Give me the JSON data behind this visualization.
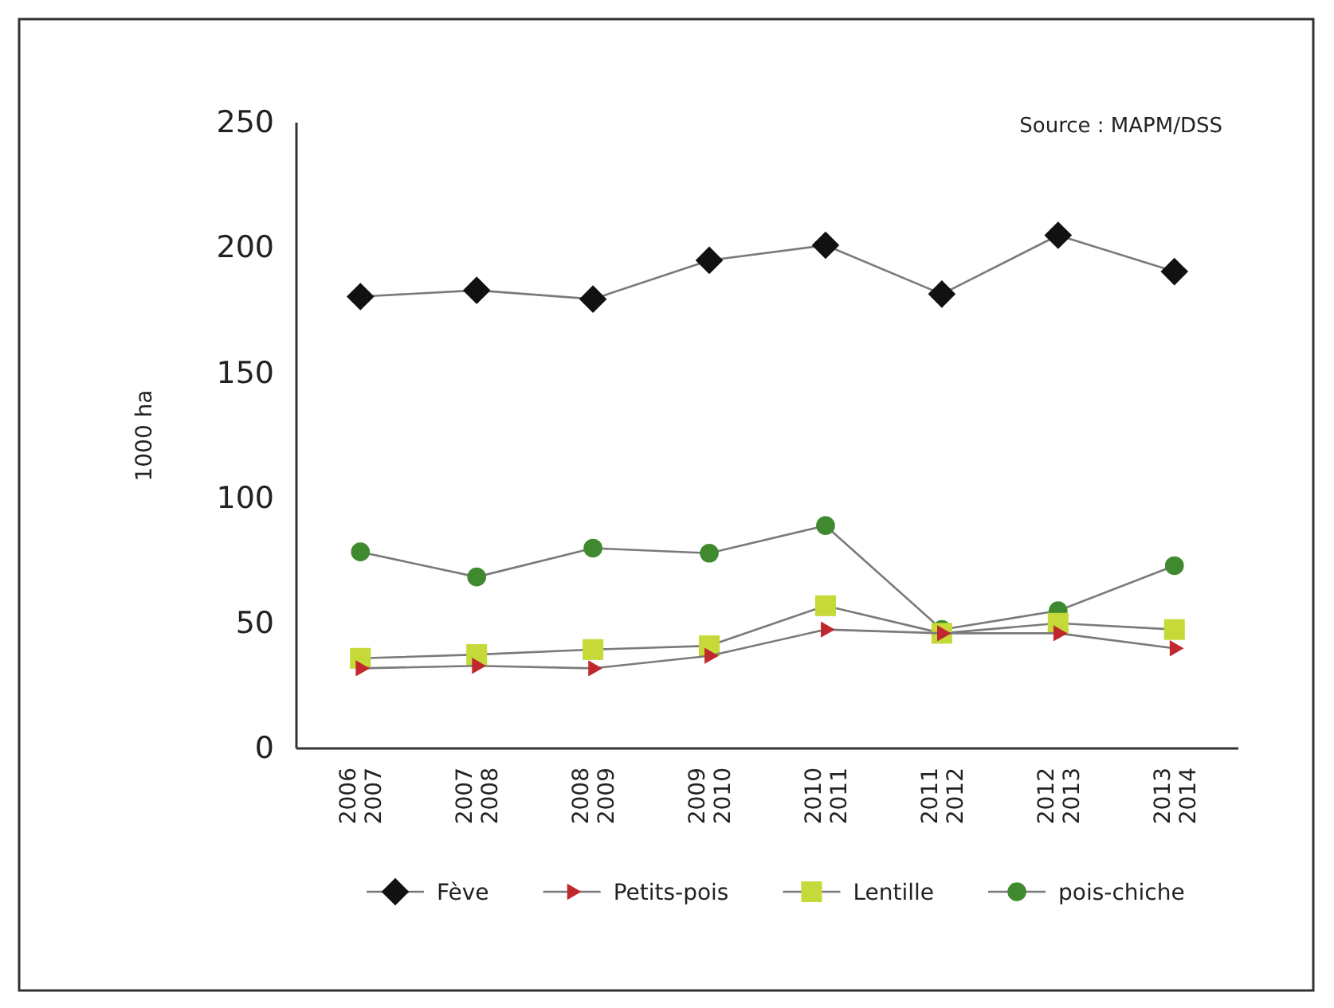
{
  "chart_data": {
    "type": "line",
    "ylabel": "1000 ha",
    "annotations": [
      "Source : MAPM/DSS"
    ],
    "categories": [
      "2006\n2007",
      "2007\n2008",
      "2008\n2009",
      "2009\n2010",
      "2010\n2011",
      "2011\n2012",
      "2012\n2013",
      "2013\n2014"
    ],
    "series": [
      {
        "name": "Fève",
        "color": "#111111",
        "marker": "diamond",
        "values": [
          180.5,
          183,
          179.5,
          195,
          201,
          181.5,
          205,
          190.5
        ]
      },
      {
        "name": "Petits-pois",
        "color": "#c0282d",
        "marker": "triangle",
        "values": [
          32,
          33,
          32,
          37,
          47.5,
          46,
          46,
          40
        ]
      },
      {
        "name": "Lentille",
        "color": "#c5d938",
        "marker": "square",
        "values": [
          36,
          37.5,
          39.5,
          41,
          57,
          46,
          50,
          47.5
        ]
      },
      {
        "name": "pois-chiche",
        "color": "#3f8a2e",
        "marker": "circle",
        "values": [
          78.5,
          68.5,
          80,
          78,
          89,
          47.5,
          55,
          73
        ]
      }
    ],
    "ylim": [
      0,
      250
    ],
    "yticks": [
      0,
      50,
      100,
      150,
      200,
      250
    ],
    "grid": false,
    "legend": "bottom",
    "line_style": "solid"
  }
}
